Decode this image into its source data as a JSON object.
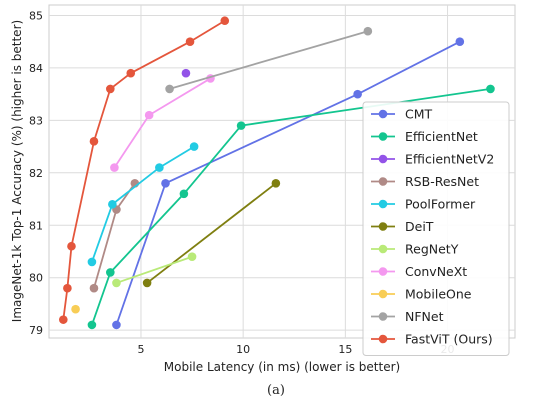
{
  "chart_data": {
    "type": "scatter",
    "xlabel": "Mobile Latency (in ms) (lower is better)",
    "ylabel": "ImageNet-1k Top-1 Accuracy (%) (higher is better)",
    "xlim": [
      0.5,
      23.3
    ],
    "ylim": [
      78.85,
      85.2
    ],
    "x_ticks": [
      5,
      10,
      15,
      20
    ],
    "y_ticks": [
      79,
      80,
      81,
      82,
      83,
      84,
      85
    ],
    "grid": true,
    "legend_position": "lower-right",
    "caption": "(a)",
    "series": [
      {
        "name": "CMT",
        "color": "#6272e6",
        "connected": true,
        "points": [
          [
            3.8,
            79.1
          ],
          [
            6.2,
            81.8
          ],
          [
            15.6,
            83.5
          ],
          [
            20.6,
            84.5
          ]
        ]
      },
      {
        "name": "EfficientNet",
        "color": "#13c58f",
        "connected": true,
        "points": [
          [
            2.6,
            79.1
          ],
          [
            3.5,
            80.1
          ],
          [
            7.1,
            81.6
          ],
          [
            9.9,
            82.9
          ],
          [
            22.1,
            83.6
          ]
        ]
      },
      {
        "name": "EfficientNetV2",
        "color": "#9353e8",
        "connected": true,
        "points": [
          [
            7.2,
            83.9
          ]
        ]
      },
      {
        "name": "RSB-ResNet",
        "color": "#b08a86",
        "connected": true,
        "points": [
          [
            2.7,
            79.8
          ],
          [
            3.8,
            81.3
          ],
          [
            4.7,
            81.8
          ]
        ]
      },
      {
        "name": "PoolFormer",
        "color": "#22cbe3",
        "connected": true,
        "points": [
          [
            2.6,
            80.3
          ],
          [
            3.6,
            81.4
          ],
          [
            5.9,
            82.1
          ],
          [
            7.6,
            82.5
          ]
        ]
      },
      {
        "name": "DeiT",
        "color": "#7f7f10",
        "connected": true,
        "points": [
          [
            5.3,
            79.9
          ],
          [
            11.6,
            81.8
          ]
        ]
      },
      {
        "name": "RegNetY",
        "color": "#b9ea78",
        "connected": true,
        "points": [
          [
            3.8,
            79.9
          ],
          [
            7.5,
            80.4
          ]
        ]
      },
      {
        "name": "ConvNeXt",
        "color": "#f498ef",
        "connected": true,
        "points": [
          [
            3.7,
            82.1
          ],
          [
            5.4,
            83.1
          ],
          [
            8.4,
            83.8
          ]
        ]
      },
      {
        "name": "MobileOne",
        "color": "#f8cd56",
        "connected": true,
        "points": [
          [
            1.8,
            79.4
          ]
        ]
      },
      {
        "name": "NFNet",
        "color": "#a3a3a3",
        "connected": true,
        "points": [
          [
            6.4,
            83.6
          ],
          [
            16.1,
            84.7
          ]
        ]
      },
      {
        "name": "FastViT (Ours)",
        "color": "#e4563c",
        "connected": true,
        "points": [
          [
            1.2,
            79.2
          ],
          [
            1.4,
            79.8
          ],
          [
            1.6,
            80.6
          ],
          [
            2.7,
            82.6
          ],
          [
            3.5,
            83.6
          ],
          [
            4.5,
            83.9
          ],
          [
            7.4,
            84.5
          ],
          [
            9.1,
            84.9
          ]
        ]
      }
    ]
  }
}
